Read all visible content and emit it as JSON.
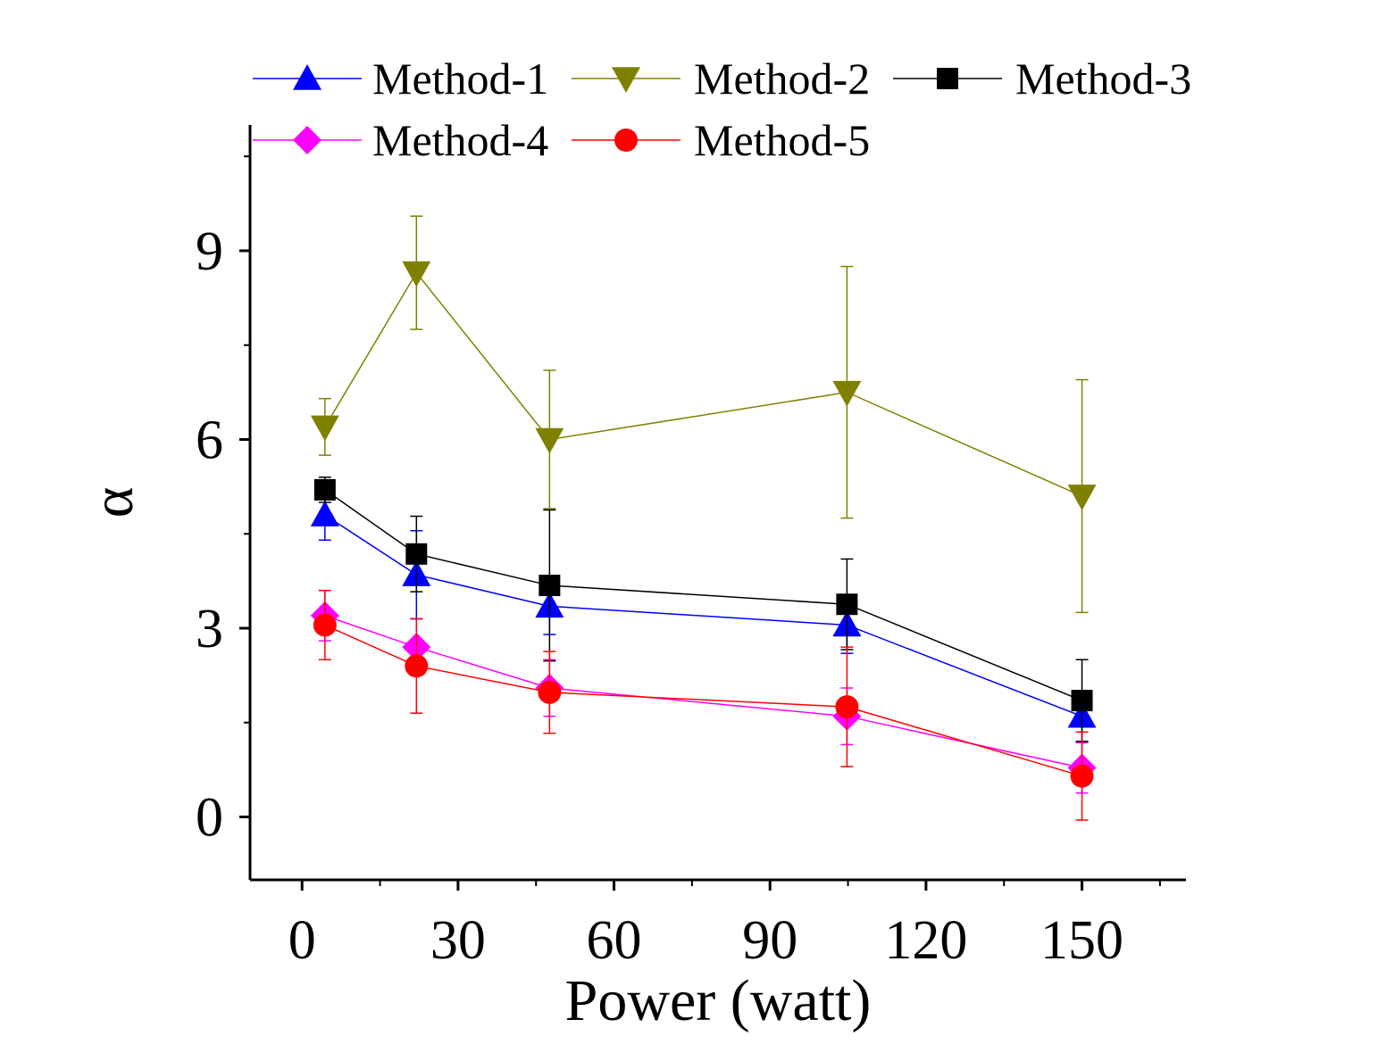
{
  "chart_data": {
    "type": "line",
    "title": "",
    "xlabel": "Power (watt)",
    "ylabel": "α",
    "xlim": [
      -10,
      170
    ],
    "ylim": [
      -1,
      11
    ],
    "xticks": [
      0,
      30,
      60,
      90,
      120,
      150
    ],
    "yticks": [
      0,
      3,
      6,
      9
    ],
    "xtick_labels": [
      "0",
      "30",
      "60",
      "90",
      "120",
      "150"
    ],
    "ytick_labels": [
      "0",
      "3",
      "6",
      "9"
    ],
    "grid": false,
    "legend_position": "top",
    "x": [
      4.4,
      22,
      47.6,
      104.8,
      150
    ],
    "series": [
      {
        "name": "Method-1",
        "color": "#0000FF",
        "marker": "triangle-up",
        "values": [
          4.8,
          3.85,
          3.35,
          3.05,
          1.6
        ],
        "errors": [
          0.4,
          0.7,
          0.45,
          0.45,
          0.4
        ]
      },
      {
        "name": "Method-2",
        "color": "#808000",
        "marker": "triangle-down",
        "values": [
          6.2,
          8.65,
          6.0,
          6.75,
          5.1
        ],
        "errors": [
          0.45,
          0.9,
          1.1,
          2.0,
          1.85
        ]
      },
      {
        "name": "Method-3",
        "color": "#000000",
        "marker": "square",
        "values": [
          5.2,
          4.18,
          3.68,
          3.38,
          1.85
        ],
        "errors": [
          0.2,
          0.6,
          1.2,
          0.72,
          0.65
        ]
      },
      {
        "name": "Method-4",
        "color": "#FF00FF",
        "marker": "diamond",
        "values": [
          3.2,
          2.7,
          2.05,
          1.6,
          0.78
        ],
        "errors": [
          0.4,
          0.45,
          0.45,
          0.45,
          0.4
        ]
      },
      {
        "name": "Method-5",
        "color": "#FF0000",
        "marker": "circle",
        "values": [
          3.05,
          2.4,
          1.98,
          1.75,
          0.65
        ],
        "errors": [
          0.55,
          0.75,
          0.65,
          0.95,
          0.7
        ]
      }
    ]
  }
}
